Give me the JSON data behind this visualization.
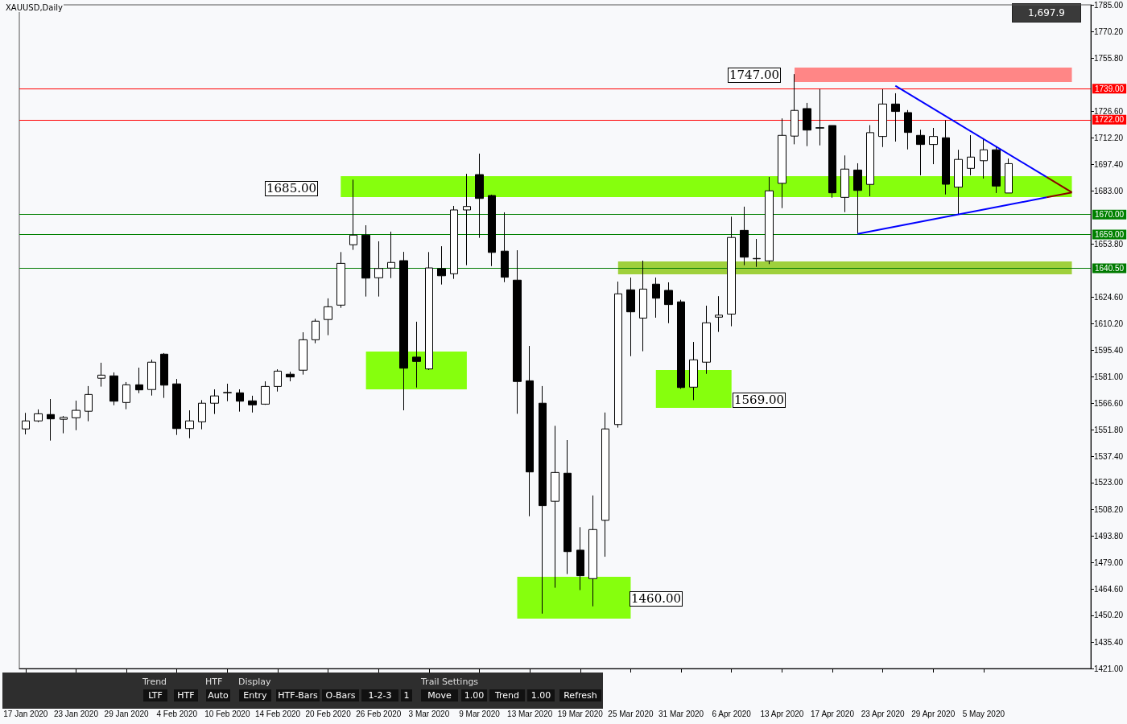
{
  "chart_data": {
    "type": "candlestick",
    "title": "XAUUSD,Daily",
    "categories": [
      "17 Jan 2020",
      null,
      null,
      null,
      "23 Jan 2020",
      null,
      null,
      null,
      "29 Jan 2020",
      null,
      null,
      null,
      "4 Feb 2020",
      null,
      null,
      null,
      "10 Feb 2020",
      null,
      null,
      null,
      "14 Feb 2020",
      null,
      null,
      null,
      "20 Feb 2020",
      null,
      null,
      null,
      "26 Feb 2020",
      null,
      null,
      null,
      "3 Mar 2020",
      null,
      null,
      null,
      "9 Mar 2020",
      null,
      null,
      null,
      "13 Mar 2020",
      null,
      null,
      null,
      "19 Mar 2020",
      null,
      null,
      null,
      "25 Mar 2020",
      null,
      null,
      null,
      "31 Mar 2020",
      null,
      null,
      null,
      "6 Apr 2020",
      null,
      null,
      null,
      "13 Apr 2020",
      null,
      null,
      null,
      "17 Apr 2020",
      null,
      null,
      null,
      "23 Apr 2020",
      null,
      null,
      null,
      "29 Apr 2020",
      null,
      null,
      null,
      "5 May 2020",
      null,
      null,
      null,
      null,
      null,
      null,
      null,
      null
    ],
    "ohlc": [
      [
        1552.4,
        1561.2,
        1549.4,
        1556.8
      ],
      [
        1556.8,
        1563.1,
        1556.1,
        1560.7
      ],
      [
        1560.3,
        1568.8,
        1546.0,
        1557.9
      ],
      [
        1557.7,
        1559.5,
        1550.0,
        1558.7
      ],
      [
        1558.5,
        1567.9,
        1551.7,
        1562.6
      ],
      [
        1562.1,
        1575.9,
        1556.6,
        1571.3
      ],
      [
        1580.2,
        1588.7,
        1575.6,
        1581.9
      ],
      [
        1581.5,
        1583.4,
        1565.4,
        1567.6
      ],
      [
        1566.9,
        1578.1,
        1563.2,
        1576.6
      ],
      [
        1576.6,
        1586.0,
        1572.0,
        1573.8
      ],
      [
        1574.0,
        1590.4,
        1570.7,
        1589.0
      ],
      [
        1593.4,
        1594.0,
        1569.4,
        1576.4
      ],
      [
        1577.1,
        1579.8,
        1549.1,
        1552.6
      ],
      [
        1552.6,
        1562.6,
        1547.3,
        1556.8
      ],
      [
        1556.3,
        1568.2,
        1552.2,
        1566.5
      ],
      [
        1566.5,
        1574.1,
        1560.6,
        1570.5
      ],
      [
        1572.2,
        1577.2,
        1567.6,
        1572.4
      ],
      [
        1572.2,
        1574.1,
        1561.9,
        1567.6
      ],
      [
        1567.8,
        1570.6,
        1561.4,
        1565.6
      ],
      [
        1566.0,
        1578.5,
        1565.6,
        1575.7
      ],
      [
        1575.7,
        1585.1,
        1572.9,
        1584.1
      ],
      [
        1582.4,
        1583.8,
        1578.5,
        1580.9
      ],
      [
        1584.6,
        1605.4,
        1582.2,
        1601.3
      ],
      [
        1601.3,
        1612.8,
        1599.4,
        1611.5
      ],
      [
        1612.4,
        1624.0,
        1603.8,
        1619.4
      ],
      [
        1620.3,
        1649.4,
        1618.8,
        1643.2
      ],
      [
        1653.4,
        1689.1,
        1650.6,
        1658.7
      ],
      [
        1658.7,
        1664.1,
        1625.0,
        1635.1
      ],
      [
        1635.3,
        1655.3,
        1625.0,
        1640.4
      ],
      [
        1640.6,
        1660.6,
        1635.1,
        1643.7
      ],
      [
        1644.7,
        1649.5,
        1562.6,
        1585.7
      ],
      [
        1591.8,
        1611.2,
        1575.1,
        1589.4
      ],
      [
        1585.3,
        1649.4,
        1584.7,
        1640.7
      ],
      [
        1640.3,
        1652.6,
        1631.6,
        1636.4
      ],
      [
        1637.5,
        1674.7,
        1634.7,
        1672.5
      ],
      [
        1672.5,
        1692.3,
        1642.2,
        1674.4
      ],
      [
        1691.9,
        1703.4,
        1657.2,
        1678.8
      ],
      [
        1680.4,
        1680.9,
        1641.7,
        1649.2
      ],
      [
        1649.9,
        1671.2,
        1632.9,
        1635.6
      ],
      [
        1634.0,
        1650.4,
        1560.7,
        1578.4
      ],
      [
        1578.8,
        1597.9,
        1504.5,
        1528.8
      ],
      [
        1566.5,
        1575.9,
        1451.1,
        1510.3
      ],
      [
        1512.7,
        1554.1,
        1465.3,
        1528.5
      ],
      [
        1528.1,
        1546.3,
        1472.8,
        1485.1
      ],
      [
        1485.9,
        1498.5,
        1464.0,
        1471.9
      ],
      [
        1470.3,
        1515.9,
        1455.1,
        1497.2
      ],
      [
        1502.3,
        1561.4,
        1482.3,
        1552.4
      ],
      [
        1554.8,
        1633.2,
        1553.1,
        1626.5
      ],
      [
        1628.7,
        1635.4,
        1592.3,
        1616.6
      ],
      [
        1613.2,
        1644.7,
        1595.0,
        1629.1
      ],
      [
        1631.8,
        1635.4,
        1613.4,
        1624.1
      ],
      [
        1628.4,
        1632.8,
        1610.4,
        1620.6
      ],
      [
        1622.1,
        1623.2,
        1574.4,
        1575.1
      ],
      [
        1575.3,
        1600.1,
        1568.2,
        1590.3
      ],
      [
        1589.0,
        1620.0,
        1582.6,
        1610.6
      ],
      [
        1613.7,
        1625.2,
        1605.6,
        1614.8
      ],
      [
        1615.4,
        1668.8,
        1608.7,
        1657.4
      ],
      [
        1661.3,
        1674.3,
        1642.2,
        1646.6
      ],
      [
        1645.7,
        1656.6,
        1641.3,
        1645.9
      ],
      [
        1644.6,
        1690.6,
        1642.8,
        1683.0
      ],
      [
        1687.1,
        1722.7,
        1673.5,
        1713.4
      ],
      [
        1713.0,
        1747.0,
        1708.5,
        1727.1
      ],
      [
        1728.1,
        1731.2,
        1707.5,
        1716.3
      ],
      [
        1717.6,
        1738.8,
        1707.9,
        1717.4
      ],
      [
        1718.8,
        1718.8,
        1679.2,
        1681.9
      ],
      [
        1679.4,
        1702.4,
        1671.3,
        1694.9
      ],
      [
        1694.4,
        1698.1,
        1659.4,
        1683.2
      ],
      [
        1686.5,
        1719.0,
        1680.0,
        1714.9
      ],
      [
        1712.8,
        1738.7,
        1707.0,
        1730.6
      ],
      [
        1730.6,
        1736.5,
        1710.0,
        1726.5
      ],
      [
        1725.9,
        1727.3,
        1705.7,
        1715.0
      ],
      [
        1713.4,
        1716.5,
        1691.5,
        1708.4
      ],
      [
        1708.4,
        1717.5,
        1697.6,
        1712.8
      ],
      [
        1712.1,
        1721.6,
        1681.0,
        1686.6
      ],
      [
        1685.0,
        1705.5,
        1670.0,
        1700.2
      ],
      [
        1695.3,
        1713.5,
        1691.5,
        1701.5
      ],
      [
        1699.5,
        1711.5,
        1689.7,
        1705.5
      ],
      [
        1705.5,
        1707.5,
        1681.8,
        1685.6
      ],
      [
        1681.8,
        1700.7,
        1681.8,
        1697.9
      ],
      null,
      null,
      null,
      null,
      null,
      null
    ],
    "series": [
      {
        "type": "line",
        "color": "#0000ff",
        "values": [
          null,
          null,
          null,
          null,
          null,
          null,
          null,
          null,
          null,
          null,
          null,
          null,
          null,
          null,
          null,
          null,
          null,
          null,
          null,
          null,
          null,
          null,
          null,
          null,
          null,
          null,
          null,
          null,
          null,
          null,
          null,
          null,
          null,
          null,
          null,
          null,
          null,
          null,
          null,
          null,
          null,
          null,
          null,
          null,
          null,
          null,
          null,
          null,
          null,
          null,
          null,
          null,
          null,
          null,
          null,
          null,
          null,
          null,
          null,
          null,
          null,
          null,
          null,
          null,
          null,
          null,
          null,
          null,
          null,
          1740.6,
          null,
          null,
          null,
          null,
          null,
          null,
          null,
          null,
          null,
          null,
          null,
          1690.5,
          null,
          null,
          null
        ]
      },
      {
        "type": "line",
        "color": "#0000ff",
        "values": [
          null,
          null,
          null,
          null,
          null,
          null,
          null,
          null,
          null,
          null,
          null,
          null,
          null,
          null,
          null,
          null,
          null,
          null,
          null,
          null,
          null,
          null,
          null,
          null,
          null,
          null,
          null,
          null,
          null,
          null,
          null,
          null,
          null,
          null,
          null,
          null,
          null,
          null,
          null,
          null,
          null,
          null,
          null,
          null,
          null,
          null,
          null,
          null,
          null,
          null,
          null,
          null,
          null,
          null,
          null,
          null,
          null,
          null,
          null,
          null,
          null,
          null,
          null,
          null,
          null,
          null,
          1659.4,
          null,
          null,
          null,
          null,
          null,
          null,
          null,
          null,
          null,
          null,
          null,
          null,
          null,
          null,
          1679.4,
          null,
          null,
          null
        ]
      },
      {
        "type": "line",
        "color": "#8b0000",
        "values": [
          null,
          null,
          null,
          null,
          null,
          null,
          null,
          null,
          null,
          null,
          null,
          null,
          null,
          null,
          null,
          null,
          null,
          null,
          null,
          null,
          null,
          null,
          null,
          null,
          null,
          null,
          null,
          null,
          null,
          null,
          null,
          null,
          null,
          null,
          null,
          null,
          null,
          null,
          null,
          null,
          null,
          null,
          null,
          null,
          null,
          null,
          null,
          null,
          null,
          null,
          null,
          null,
          null,
          null,
          null,
          null,
          null,
          null,
          null,
          null,
          null,
          null,
          null,
          null,
          null,
          null,
          null,
          null,
          null,
          null,
          null,
          null,
          null,
          null,
          null,
          null,
          null,
          null,
          null,
          null,
          null,
          1690.5,
          null,
          1682.1,
          null
        ]
      },
      {
        "type": "line",
        "color": "#8b0000",
        "values": [
          null,
          null,
          null,
          null,
          null,
          null,
          null,
          null,
          null,
          null,
          null,
          null,
          null,
          null,
          null,
          null,
          null,
          null,
          null,
          null,
          null,
          null,
          null,
          null,
          null,
          null,
          null,
          null,
          null,
          null,
          null,
          null,
          null,
          null,
          null,
          null,
          null,
          null,
          null,
          null,
          null,
          null,
          null,
          null,
          null,
          null,
          null,
          null,
          null,
          null,
          null,
          null,
          null,
          null,
          null,
          null,
          null,
          null,
          null,
          null,
          null,
          null,
          null,
          null,
          null,
          null,
          null,
          null,
          null,
          null,
          null,
          null,
          null,
          null,
          null,
          null,
          null,
          null,
          null,
          null,
          null,
          1679.4,
          null,
          1682.1,
          null
        ]
      }
    ],
    "ylim": [
      1421,
      1785
    ],
    "yticks": [
      {
        "value": 1785,
        "label": "1785.00"
      },
      {
        "value": 1770.2,
        "label": "1770.20"
      },
      {
        "value": 1755.8,
        "label": "1755.80"
      },
      {
        "value": 1726.6,
        "label": "1726.60"
      },
      {
        "value": 1712.2,
        "label": "1712.20"
      },
      {
        "value": 1697.4,
        "label": "1697.40"
      },
      {
        "value": 1683,
        "label": "1683.00"
      },
      {
        "value": 1653.8,
        "label": "1653.80"
      },
      {
        "value": 1624.6,
        "label": "1624.60"
      },
      {
        "value": 1610.2,
        "label": "1610.20"
      },
      {
        "value": 1595.4,
        "label": "1595.40"
      },
      {
        "value": 1581,
        "label": "1581.00"
      },
      {
        "value": 1566.6,
        "label": "1566.60"
      },
      {
        "value": 1551.8,
        "label": "1551.80"
      },
      {
        "value": 1537.4,
        "label": "1537.40"
      },
      {
        "value": 1523,
        "label": "1523.00"
      },
      {
        "value": 1508.2,
        "label": "1508.20"
      },
      {
        "value": 1493.8,
        "label": "1493.80"
      },
      {
        "value": 1479,
        "label": "1479.00"
      },
      {
        "value": 1464.6,
        "label": "1464.60"
      },
      {
        "value": 1450.2,
        "label": "1450.20"
      },
      {
        "value": 1435.4,
        "label": "1435.40"
      },
      {
        "value": 1421,
        "label": "1421.00"
      }
    ],
    "ref_lines": [
      {
        "axis": "y",
        "value": 1739,
        "label": "1739.00",
        "color": "#ff0000"
      },
      {
        "axis": "y",
        "value": 1722,
        "label": "1722.00",
        "color": "#ff0000"
      },
      {
        "axis": "y",
        "value": 1670,
        "label": "1670.00",
        "color": "#008000"
      },
      {
        "axis": "y",
        "value": 1659,
        "label": "1659.00",
        "color": "#008000"
      },
      {
        "axis": "y",
        "value": 1640.5,
        "label": "1640.50",
        "color": "#007a00"
      }
    ],
    "bands": [
      {
        "axis": "y",
        "from": 1742.6,
        "to": 1750.6,
        "color": "#ff8080"
      },
      {
        "axis": "y",
        "from": 1679.6,
        "to": 1691.0,
        "color": "#80ff00"
      },
      {
        "axis": "y",
        "from": 1637.2,
        "to": 1644.3,
        "color": "#9acd32"
      },
      {
        "axis": "y",
        "from": 1564.0,
        "to": 1584.7,
        "color": "#80ff00"
      },
      {
        "axis": "y",
        "from": 1574.1,
        "to": 1594.8,
        "color": "#80ff00"
      },
      {
        "axis": "y",
        "from": 1448.4,
        "to": 1471.3,
        "color": "#80ff00"
      }
    ],
    "annotations": [
      "1,697.9",
      "Trend",
      "LTF",
      "HTF",
      "HTF",
      "Auto",
      "Display",
      "Entry",
      "HTF-Bars",
      "O-Bars",
      "1-2-3",
      "1",
      "Trail Settings",
      "Move",
      "1.00",
      "Trend",
      "1.00",
      "Refresh",
      "1747.00",
      "1685.00",
      "1569.00",
      "1460.00"
    ],
    "grid": false
  }
}
